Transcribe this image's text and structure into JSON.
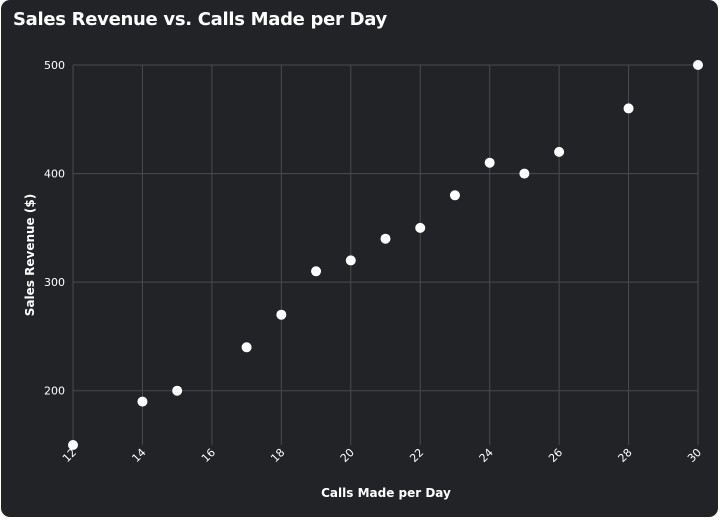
{
  "chart_data": {
    "type": "scatter",
    "title": "Sales Revenue vs. Calls Made per Day",
    "xlabel": "Calls Made per Day",
    "ylabel": "Sales Revenue ($)",
    "xlim": [
      12,
      30
    ],
    "ylim": [
      150,
      500
    ],
    "x_ticks": [
      12,
      14,
      16,
      18,
      20,
      22,
      24,
      26,
      28,
      30
    ],
    "y_ticks": [
      200,
      300,
      400,
      500
    ],
    "grid": true,
    "x": [
      12,
      14,
      15,
      17,
      18,
      19,
      20,
      21,
      22,
      23,
      24,
      25,
      26,
      28,
      30
    ],
    "y": [
      150,
      190,
      200,
      240,
      270,
      310,
      320,
      340,
      350,
      380,
      410,
      400,
      420,
      460,
      500
    ],
    "colors": {
      "background": "#222327",
      "grid": "#4a4b4f",
      "point": "#ffffff",
      "text": "#ffffff"
    }
  }
}
